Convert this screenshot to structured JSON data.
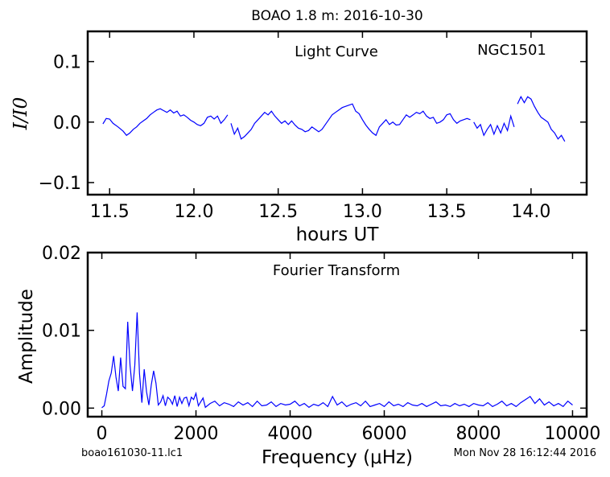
{
  "figure": {
    "title": "BOAO 1.8 m:  2016-10-30",
    "footer_left": "boao161030-11.lc1",
    "footer_right": "Mon Nov 28 16:12:44 2016",
    "line_color": "#0000ff"
  },
  "chart_data": [
    {
      "type": "line",
      "annotation": "Light Curve",
      "annotation_right": "NGC1501",
      "xlabel": "hours UT",
      "ylabel": "I/I0",
      "xlim": [
        11.37,
        14.33
      ],
      "ylim": [
        -0.12,
        0.15
      ],
      "x_ticks": [
        11.5,
        12.0,
        12.5,
        13.0,
        13.5,
        14.0
      ],
      "x_tick_labels": [
        "11.5",
        "12.0",
        "12.5",
        "13.0",
        "13.5",
        "14.0"
      ],
      "y_ticks": [
        0.1,
        0.0,
        -0.1
      ],
      "y_tick_labels": [
        "0.1",
        "0.0",
        "−0.1"
      ],
      "grid": false,
      "segments": [
        {
          "x": [
            11.46,
            11.48,
            11.5,
            11.52,
            11.55,
            11.58,
            11.6,
            11.62,
            11.64,
            11.66,
            11.68,
            11.7,
            11.72,
            11.74,
            11.76,
            11.78,
            11.8,
            11.82,
            11.84,
            11.86,
            11.88,
            11.9,
            11.92,
            11.94,
            11.96,
            11.98,
            12.0,
            12.02,
            12.04,
            12.06,
            12.08,
            12.1,
            12.12,
            12.14,
            12.16,
            12.18,
            12.2
          ],
          "y": [
            -0.003,
            0.006,
            0.005,
            -0.002,
            -0.008,
            -0.015,
            -0.022,
            -0.018,
            -0.012,
            -0.008,
            -0.002,
            0.002,
            0.006,
            0.012,
            0.016,
            0.02,
            0.022,
            0.019,
            0.016,
            0.02,
            0.015,
            0.018,
            0.01,
            0.012,
            0.008,
            0.003,
            0.0,
            -0.004,
            -0.006,
            -0.002,
            0.008,
            0.01,
            0.005,
            0.01,
            -0.002,
            0.004,
            0.012
          ]
        },
        {
          "x": [
            12.22,
            12.24,
            12.26,
            12.28,
            12.3,
            12.32,
            12.34,
            12.36,
            12.38,
            12.4,
            12.42,
            12.44,
            12.46,
            12.48,
            12.5,
            12.52,
            12.54,
            12.56,
            12.58,
            12.6,
            12.62,
            12.64,
            12.66,
            12.68,
            12.7,
            12.72,
            12.74,
            12.76,
            12.78,
            12.8,
            12.82,
            12.84,
            12.86,
            12.88,
            12.9,
            12.92,
            12.94,
            12.96,
            12.98,
            13.0,
            13.02,
            13.04,
            13.06,
            13.08,
            13.1,
            13.12,
            13.14,
            13.16,
            13.18,
            13.2,
            13.22,
            13.24,
            13.26,
            13.28,
            13.3,
            13.32,
            13.34,
            13.36,
            13.38,
            13.4,
            13.42,
            13.44,
            13.46,
            13.48,
            13.5,
            13.52,
            13.54,
            13.56,
            13.58,
            13.6,
            13.62,
            13.64
          ],
          "y": [
            -0.002,
            -0.02,
            -0.01,
            -0.028,
            -0.024,
            -0.018,
            -0.012,
            -0.002,
            0.004,
            0.01,
            0.016,
            0.012,
            0.018,
            0.01,
            0.004,
            -0.002,
            0.002,
            -0.004,
            0.002,
            -0.005,
            -0.01,
            -0.012,
            -0.016,
            -0.014,
            -0.008,
            -0.012,
            -0.016,
            -0.012,
            -0.004,
            0.004,
            0.012,
            0.016,
            0.02,
            0.024,
            0.026,
            0.028,
            0.03,
            0.018,
            0.014,
            0.004,
            -0.005,
            -0.012,
            -0.018,
            -0.022,
            -0.008,
            -0.002,
            0.004,
            -0.004,
            0.0,
            -0.005,
            -0.004,
            0.004,
            0.012,
            0.008,
            0.012,
            0.016,
            0.014,
            0.018,
            0.01,
            0.006,
            0.008,
            -0.002,
            0.0,
            0.004,
            0.012,
            0.014,
            0.004,
            -0.002,
            0.002,
            0.004,
            0.006,
            0.004
          ]
        },
        {
          "x": [
            13.66,
            13.68,
            13.7,
            13.72,
            13.74,
            13.76,
            13.78,
            13.8,
            13.82,
            13.84,
            13.86,
            13.88,
            13.9
          ],
          "y": [
            0.0,
            -0.01,
            -0.004,
            -0.022,
            -0.012,
            -0.004,
            -0.02,
            -0.006,
            -0.018,
            -0.002,
            -0.014,
            0.01,
            -0.008
          ]
        },
        {
          "x": [
            13.92,
            13.94,
            13.96,
            13.98,
            14.0,
            14.02,
            14.04,
            14.06,
            14.08,
            14.1,
            14.12,
            14.14,
            14.16,
            14.18,
            14.2
          ],
          "y": [
            0.03,
            0.042,
            0.032,
            0.042,
            0.038,
            0.026,
            0.016,
            0.008,
            0.004,
            0.0,
            -0.012,
            -0.018,
            -0.028,
            -0.022,
            -0.032
          ]
        }
      ]
    },
    {
      "type": "line",
      "annotation": "Fourier Transform",
      "xlabel": "Frequency (μHz)",
      "ylabel": "Amplitude",
      "xlim": [
        -300,
        10300
      ],
      "ylim": [
        -0.0011,
        0.02
      ],
      "x_ticks": [
        0,
        2000,
        4000,
        6000,
        8000,
        10000
      ],
      "x_tick_labels": [
        "0",
        "2000",
        "4000",
        "6000",
        "8000",
        "10000"
      ],
      "y_ticks": [
        0.02,
        0.01,
        0.0
      ],
      "y_tick_labels": [
        "0.02",
        "0.01",
        "0.00"
      ],
      "grid": false,
      "x": [
        0,
        50,
        100,
        150,
        200,
        250,
        300,
        350,
        400,
        450,
        500,
        550,
        600,
        650,
        700,
        750,
        800,
        850,
        900,
        950,
        1000,
        1050,
        1100,
        1150,
        1200,
        1250,
        1300,
        1350,
        1400,
        1450,
        1500,
        1550,
        1600,
        1650,
        1700,
        1750,
        1800,
        1850,
        1900,
        1950,
        2000,
        2050,
        2100,
        2150,
        2200,
        2300,
        2400,
        2500,
        2600,
        2700,
        2800,
        2900,
        3000,
        3100,
        3200,
        3300,
        3400,
        3500,
        3600,
        3700,
        3800,
        3900,
        4000,
        4100,
        4200,
        4300,
        4400,
        4500,
        4600,
        4700,
        4800,
        4900,
        5000,
        5100,
        5200,
        5300,
        5400,
        5500,
        5600,
        5700,
        5800,
        5900,
        6000,
        6100,
        6200,
        6300,
        6400,
        6500,
        6600,
        6700,
        6800,
        6900,
        7000,
        7100,
        7200,
        7300,
        7400,
        7500,
        7600,
        7700,
        7800,
        7900,
        8000,
        8100,
        8200,
        8300,
        8400,
        8500,
        8600,
        8700,
        8800,
        8900,
        9000,
        9100,
        9200,
        9300,
        9400,
        9500,
        9600,
        9700,
        9800,
        9900,
        10000
      ],
      "y": [
        5e-05,
        0.0003,
        0.0018,
        0.0035,
        0.0045,
        0.0067,
        0.004,
        0.0022,
        0.0065,
        0.0028,
        0.0025,
        0.0111,
        0.0055,
        0.0022,
        0.0055,
        0.0123,
        0.0045,
        0.0007,
        0.005,
        0.0021,
        0.0004,
        0.003,
        0.0048,
        0.0032,
        0.0004,
        0.0008,
        0.0016,
        0.0003,
        0.0014,
        0.0011,
        0.0005,
        0.0016,
        0.0002,
        0.0014,
        0.0006,
        0.0013,
        0.0014,
        0.0003,
        0.0014,
        0.0011,
        0.0019,
        0.0003,
        0.0008,
        0.0013,
        0.0001,
        0.0006,
        0.0009,
        0.0003,
        0.0007,
        0.0005,
        0.0002,
        0.0008,
        0.0004,
        0.0007,
        0.0002,
        0.0009,
        0.0003,
        0.0004,
        0.0008,
        0.0002,
        0.0006,
        0.0004,
        0.0005,
        0.0009,
        0.0003,
        0.0006,
        0.0001,
        0.0005,
        0.0003,
        0.0007,
        0.0002,
        0.0015,
        0.0004,
        0.0008,
        0.0002,
        0.0005,
        0.0007,
        0.0003,
        0.0009,
        0.0002,
        0.0004,
        0.0006,
        0.0002,
        0.0008,
        0.0003,
        0.0005,
        0.0002,
        0.0007,
        0.0004,
        0.0003,
        0.0006,
        0.0002,
        0.0005,
        0.0008,
        0.0003,
        0.0004,
        0.0002,
        0.0006,
        0.0003,
        0.0005,
        0.0002,
        0.0006,
        0.0004,
        0.0003,
        0.0007,
        0.0002,
        0.0005,
        0.0009,
        0.0003,
        0.0006,
        0.0002,
        0.0007,
        0.0011,
        0.0015,
        0.0006,
        0.0012,
        0.0004,
        0.0008,
        0.0003,
        0.0006,
        0.0002,
        0.0009,
        0.0004
      ]
    }
  ]
}
